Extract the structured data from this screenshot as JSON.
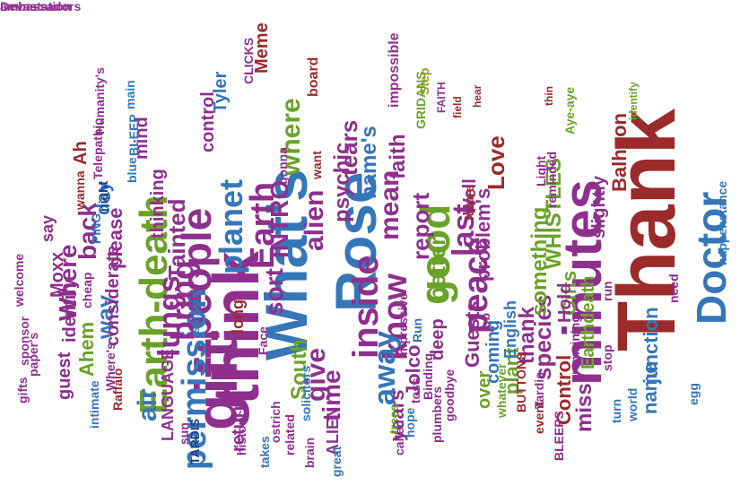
{
  "palette": {
    "purple": "#8e2f8e",
    "green": "#6aa229",
    "blue": "#3576b8",
    "red": "#9b2a2a",
    "orange": "#c7691c",
    "navy": "#1f3f86",
    "olive": "#8c9d2c",
    "background": "#ffffff"
  },
  "words": [
    {
      "text": "Thank",
      "color": "red"
    },
    {
      "text": "What's",
      "color": "blue"
    },
    {
      "text": "think",
      "color": "purple"
    },
    {
      "text": "Rose",
      "color": "blue"
    },
    {
      "text": "minutes",
      "color": "purple"
    },
    {
      "text": "gift",
      "color": "purple"
    },
    {
      "text": "Earth-death",
      "color": "green"
    },
    {
      "text": "people",
      "color": "purple"
    },
    {
      "text": "good",
      "color": "green"
    },
    {
      "text": "Doctor",
      "color": "blue"
    },
    {
      "text": "permission",
      "color": "blue"
    },
    {
      "text": "bring",
      "color": "purple"
    },
    {
      "text": "inside",
      "color": "purple"
    },
    {
      "text": "know",
      "color": "purple"
    },
    {
      "text": "Earth",
      "color": "purple"
    },
    {
      "text": "planet",
      "color": "blue"
    },
    {
      "text": "peace",
      "color": "purple"
    },
    {
      "text": "lungs",
      "color": "purple"
    },
    {
      "text": "away",
      "color": "blue"
    },
    {
      "text": "last",
      "color": "purple"
    },
    {
      "text": "alien",
      "color": "purple"
    },
    {
      "text": "mean",
      "color": "purple"
    },
    {
      "text": "where",
      "color": "green"
    },
    {
      "text": "air",
      "color": "blue"
    },
    {
      "text": "give",
      "color": "purple"
    },
    {
      "text": "time",
      "color": "purple"
    },
    {
      "text": "sort",
      "color": "purple"
    },
    {
      "text": "INTRO",
      "color": "purple"
    },
    {
      "text": "Where",
      "color": "purple"
    },
    {
      "text": "back",
      "color": "purple"
    },
    {
      "text": "Tainted",
      "color": "purple"
    },
    {
      "text": "way",
      "color": "blue"
    },
    {
      "text": "tears",
      "color": "purple"
    },
    {
      "text": "psychic",
      "color": "purple"
    },
    {
      "text": "name's",
      "color": "blue"
    },
    {
      "text": "faith",
      "color": "purple"
    },
    {
      "text": "report",
      "color": "purple"
    },
    {
      "text": "better",
      "color": "green"
    },
    {
      "text": "problem's",
      "color": "purple"
    },
    {
      "text": "species",
      "color": "purple"
    },
    {
      "text": "something",
      "color": "green"
    },
    {
      "text": "Love",
      "color": "red"
    },
    {
      "text": "WHISTLES",
      "color": "green"
    },
    {
      "text": "Gifts",
      "color": "green"
    },
    {
      "text": "thank",
      "color": "purple"
    },
    {
      "text": "plant",
      "color": "green"
    },
    {
      "text": "miss",
      "color": "purple"
    },
    {
      "text": "junction",
      "color": "blue"
    },
    {
      "text": "name",
      "color": "blue"
    },
    {
      "text": "Control",
      "color": "red"
    },
    {
      "text": "Hold",
      "color": "purple"
    },
    {
      "text": "Balhoon",
      "color": "red"
    },
    {
      "text": "slightly",
      "color": "purple"
    },
    {
      "text": "Earthdeath",
      "color": "green"
    },
    {
      "text": "mind",
      "color": "purple"
    },
    {
      "text": "thinking",
      "color": "purple"
    },
    {
      "text": "control",
      "color": "purple"
    },
    {
      "text": "Tyler",
      "color": "blue"
    },
    {
      "text": "Meme",
      "color": "red"
    },
    {
      "text": "considerate",
      "color": "purple"
    },
    {
      "text": "please",
      "color": "purple"
    },
    {
      "text": "day",
      "color": "blue"
    },
    {
      "text": "Ahem",
      "color": "green"
    },
    {
      "text": "guest",
      "color": "purple"
    },
    {
      "text": "identify",
      "color": "purple"
    },
    {
      "text": "Moxx",
      "color": "purple"
    },
    {
      "text": "say",
      "color": "purple"
    },
    {
      "text": "Ah",
      "color": "red"
    },
    {
      "text": "return",
      "color": "purple"
    },
    {
      "text": "long",
      "color": "red"
    },
    {
      "text": "South",
      "color": "green"
    },
    {
      "text": "LANGUAGE",
      "color": "purple"
    },
    {
      "text": "Jolco",
      "color": "purple"
    },
    {
      "text": "deep",
      "color": "purple"
    },
    {
      "text": "coming",
      "color": "blue"
    },
    {
      "text": "years",
      "color": "purple"
    },
    {
      "text": "English",
      "color": "blue"
    },
    {
      "text": "Guests",
      "color": "purple"
    },
    {
      "text": "over",
      "color": "green"
    },
    {
      "text": "ALIEN",
      "color": "purple"
    },
    {
      "text": "Well",
      "color": "purple"
    },
    {
      "text": "board",
      "color": "red"
    },
    {
      "text": "want",
      "color": "red"
    },
    {
      "text": "impossible",
      "color": "purple"
    },
    {
      "text": "GRIDANS",
      "color": "green"
    },
    {
      "text": "FAITH",
      "color": "purple"
    },
    {
      "text": "Step",
      "color": "olive"
    },
    {
      "text": "field",
      "color": "red"
    },
    {
      "text": "thin",
      "color": "red"
    },
    {
      "text": "Aye-aye",
      "color": "green"
    },
    {
      "text": "identify",
      "color": "green"
    },
    {
      "text": "hear",
      "color": "red"
    },
    {
      "text": "CLICKS",
      "color": "purple"
    },
    {
      "text": "main",
      "color": "blue"
    },
    {
      "text": "BLEEP",
      "color": "blue"
    },
    {
      "text": "blue",
      "color": "blue"
    },
    {
      "text": "Humanity's",
      "color": "purple"
    },
    {
      "text": "Telepathic",
      "color": "purple"
    },
    {
      "text": "PING",
      "color": "blue"
    },
    {
      "text": "night",
      "color": "navy"
    },
    {
      "text": "wanna",
      "color": "red"
    },
    {
      "text": "gonna",
      "color": "purple"
    },
    {
      "text": "Light",
      "color": "purple"
    },
    {
      "text": "future",
      "color": "red"
    },
    {
      "text": "reminded",
      "color": "purple"
    },
    {
      "text": "Last",
      "color": "purple"
    },
    {
      "text": "salivas",
      "color": "blue"
    },
    {
      "text": "Face",
      "color": "purple"
    },
    {
      "text": "impressive",
      "color": "purple"
    },
    {
      "text": "toss",
      "color": "purple"
    },
    {
      "text": "Run",
      "color": "blue"
    },
    {
      "text": "job",
      "color": "purple"
    },
    {
      "text": "Binding",
      "color": "purple"
    },
    {
      "text": "goodbye",
      "color": "purple"
    },
    {
      "text": "whatever",
      "color": "green"
    },
    {
      "text": "event",
      "color": "red"
    },
    {
      "text": "plumbers",
      "color": "purple"
    },
    {
      "text": "trees",
      "color": "green"
    },
    {
      "text": "hope",
      "color": "blue"
    },
    {
      "text": "called",
      "color": "purple"
    },
    {
      "text": "BUTTONS",
      "color": "red"
    },
    {
      "text": "Tardis",
      "color": "purple"
    },
    {
      "text": "BLEEPS",
      "color": "purple"
    },
    {
      "text": "remaining",
      "color": "purple"
    },
    {
      "text": "stop",
      "color": "purple"
    },
    {
      "text": "run",
      "color": "purple"
    },
    {
      "text": "turn",
      "color": "blue"
    },
    {
      "text": "world",
      "color": "blue"
    },
    {
      "text": "need",
      "color": "purple"
    },
    {
      "text": "egg",
      "color": "blue"
    },
    {
      "text": "happenstance",
      "color": "blue"
    },
    {
      "text": "welcome",
      "color": "purple"
    },
    {
      "text": "paper's",
      "color": "purple"
    },
    {
      "text": "sponsor",
      "color": "purple"
    },
    {
      "text": "cheap",
      "color": "purple"
    },
    {
      "text": "gifts",
      "color": "purple"
    },
    {
      "text": "Raffalo",
      "color": "red"
    },
    {
      "text": "Where's",
      "color": "purple"
    },
    {
      "text": "intimate",
      "color": "blue"
    },
    {
      "text": "sun",
      "color": "purple"
    },
    {
      "text": "TARDIS",
      "color": "navy"
    },
    {
      "text": "historical",
      "color": "purple"
    },
    {
      "text": "takes",
      "color": "blue"
    },
    {
      "text": "ostrich",
      "color": "purple"
    },
    {
      "text": "related",
      "color": "purple"
    },
    {
      "text": "brain",
      "color": "purple"
    },
    {
      "text": "solicitors",
      "color": "blue"
    },
    {
      "text": "great",
      "color": "blue"
    },
    {
      "text": "Devastation",
      "color": "purple"
    },
    {
      "text": "ambassadors",
      "color": "purple"
    }
  ]
}
